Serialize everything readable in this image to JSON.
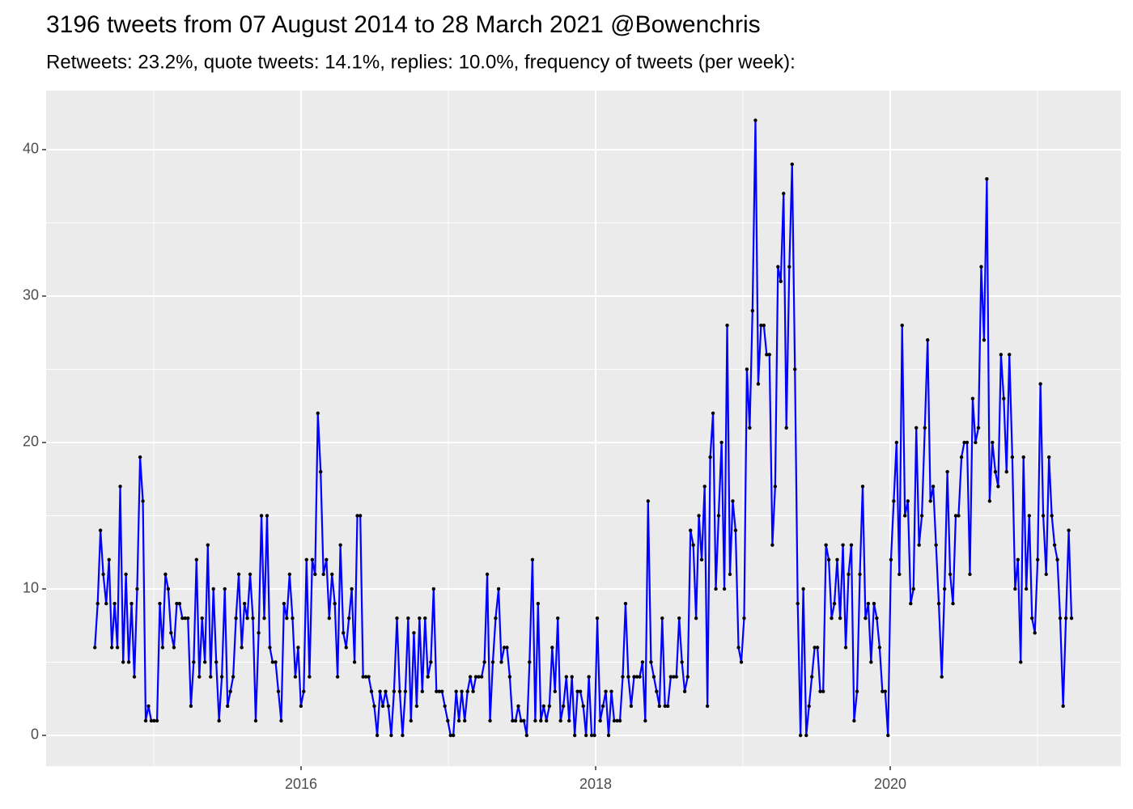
{
  "chart_data": {
    "type": "line",
    "title": "3196 tweets from 07 August 2014 to 28 March 2021 @Bowenchris",
    "subtitle": "Retweets: 23.2%, quote tweets: 14.1%, replies: 10.0%, frequency of tweets (per week):",
    "color": "#0000ff",
    "point_color": "#000000",
    "grid": true,
    "xlim": [
      2014.269,
      2021.566
    ],
    "xticks": [
      2016,
      2018,
      2020
    ],
    "minor_xticks": [
      2015,
      2017,
      2019,
      2021
    ],
    "ylim": [
      -2.1,
      44.03
    ],
    "yticks": [
      0,
      10,
      20,
      30,
      40
    ],
    "minor_yticks": [
      5,
      15,
      25,
      35
    ],
    "x": [
      2014.6,
      2014.619,
      2014.638,
      2014.657,
      2014.677,
      2014.696,
      2014.715,
      2014.734,
      2014.753,
      2014.772,
      2014.792,
      2014.811,
      2014.83,
      2014.849,
      2014.868,
      2014.887,
      2014.907,
      2014.926,
      2014.945,
      2014.964,
      2014.983,
      2015.002,
      2015.022,
      2015.041,
      2015.06,
      2015.079,
      2015.098,
      2015.117,
      2015.137,
      2015.156,
      2015.175,
      2015.194,
      2015.213,
      2015.232,
      2015.252,
      2015.271,
      2015.29,
      2015.309,
      2015.328,
      2015.347,
      2015.367,
      2015.386,
      2015.405,
      2015.424,
      2015.443,
      2015.462,
      2015.482,
      2015.501,
      2015.52,
      2015.539,
      2015.558,
      2015.577,
      2015.597,
      2015.616,
      2015.635,
      2015.654,
      2015.673,
      2015.692,
      2015.712,
      2015.731,
      2015.75,
      2015.769,
      2015.788,
      2015.807,
      2015.827,
      2015.846,
      2015.865,
      2015.884,
      2015.903,
      2015.922,
      2015.942,
      2015.961,
      2015.98,
      2015.999,
      2016.018,
      2016.037,
      2016.057,
      2016.076,
      2016.095,
      2016.114,
      2016.133,
      2016.152,
      2016.172,
      2016.191,
      2016.21,
      2016.229,
      2016.248,
      2016.267,
      2016.287,
      2016.306,
      2016.325,
      2016.344,
      2016.363,
      2016.382,
      2016.402,
      2016.421,
      2016.44,
      2016.459,
      2016.478,
      2016.497,
      2016.517,
      2016.536,
      2016.555,
      2016.574,
      2016.593,
      2016.612,
      2016.631,
      2016.651,
      2016.67,
      2016.689,
      2016.708,
      2016.727,
      2016.746,
      2016.766,
      2016.785,
      2016.804,
      2016.823,
      2016.842,
      2016.861,
      2016.881,
      2016.9,
      2016.919,
      2016.938,
      2016.957,
      2016.976,
      2016.996,
      2017.015,
      2017.034,
      2017.053,
      2017.072,
      2017.091,
      2017.111,
      2017.13,
      2017.149,
      2017.168,
      2017.187,
      2017.206,
      2017.226,
      2017.245,
      2017.264,
      2017.283,
      2017.302,
      2017.321,
      2017.341,
      2017.36,
      2017.379,
      2017.398,
      2017.417,
      2017.436,
      2017.456,
      2017.475,
      2017.494,
      2017.513,
      2017.532,
      2017.551,
      2017.571,
      2017.59,
      2017.609,
      2017.628,
      2017.647,
      2017.666,
      2017.686,
      2017.705,
      2017.724,
      2017.743,
      2017.762,
      2017.781,
      2017.801,
      2017.82,
      2017.839,
      2017.858,
      2017.877,
      2017.896,
      2017.916,
      2017.935,
      2017.954,
      2017.973,
      2017.992,
      2018.011,
      2018.031,
      2018.05,
      2018.069,
      2018.088,
      2018.107,
      2018.126,
      2018.146,
      2018.165,
      2018.184,
      2018.203,
      2018.222,
      2018.241,
      2018.261,
      2018.28,
      2018.299,
      2018.318,
      2018.337,
      2018.356,
      2018.376,
      2018.395,
      2018.414,
      2018.433,
      2018.452,
      2018.471,
      2018.49,
      2018.51,
      2018.529,
      2018.548,
      2018.567,
      2018.586,
      2018.605,
      2018.625,
      2018.644,
      2018.663,
      2018.682,
      2018.701,
      2018.72,
      2018.74,
      2018.759,
      2018.778,
      2018.797,
      2018.816,
      2018.835,
      2018.855,
      2018.874,
      2018.893,
      2018.912,
      2018.931,
      2018.95,
      2018.97,
      2018.989,
      2019.008,
      2019.027,
      2019.046,
      2019.065,
      2019.085,
      2019.104,
      2019.123,
      2019.142,
      2019.161,
      2019.18,
      2019.2,
      2019.219,
      2019.238,
      2019.257,
      2019.276,
      2019.295,
      2019.315,
      2019.334,
      2019.353,
      2019.372,
      2019.391,
      2019.41,
      2019.43,
      2019.449,
      2019.468,
      2019.487,
      2019.506,
      2019.525,
      2019.545,
      2019.564,
      2019.583,
      2019.602,
      2019.621,
      2019.64,
      2019.66,
      2019.679,
      2019.698,
      2019.717,
      2019.736,
      2019.755,
      2019.775,
      2019.794,
      2019.813,
      2019.832,
      2019.851,
      2019.87,
      2019.89,
      2019.909,
      2019.928,
      2019.947,
      2019.966,
      2019.985,
      2020.005,
      2020.024,
      2020.043,
      2020.062,
      2020.081,
      2020.1,
      2020.12,
      2020.139,
      2020.158,
      2020.177,
      2020.196,
      2020.215,
      2020.235,
      2020.254,
      2020.273,
      2020.292,
      2020.311,
      2020.33,
      2020.35,
      2020.369,
      2020.388,
      2020.407,
      2020.426,
      2020.445,
      2020.464,
      2020.484,
      2020.503,
      2020.522,
      2020.541,
      2020.56,
      2020.579,
      2020.599,
      2020.618,
      2020.637,
      2020.656,
      2020.675,
      2020.694,
      2020.714,
      2020.733,
      2020.752,
      2020.771,
      2020.79,
      2020.809,
      2020.829,
      2020.848,
      2020.867,
      2020.886,
      2020.905,
      2020.924,
      2020.944,
      2020.963,
      2020.982,
      2021.001,
      2021.02,
      2021.039,
      2021.059,
      2021.078,
      2021.097,
      2021.116,
      2021.135,
      2021.154,
      2021.174,
      2021.193,
      2021.212,
      2021.231
    ],
    "values": [
      6,
      9,
      14,
      11,
      9,
      12,
      6,
      9,
      6,
      17,
      5,
      11,
      5,
      9,
      4,
      10,
      19,
      16,
      1,
      2,
      1,
      1,
      1,
      9,
      6,
      11,
      10,
      7,
      6,
      9,
      9,
      8,
      8,
      8,
      2,
      5,
      12,
      4,
      8,
      5,
      13,
      4,
      10,
      5,
      1,
      4,
      10,
      2,
      3,
      4,
      8,
      11,
      6,
      9,
      8,
      11,
      8,
      1,
      7,
      15,
      8,
      15,
      6,
      5,
      5,
      3,
      1,
      9,
      8,
      11,
      8,
      4,
      6,
      2,
      3,
      12,
      4,
      12,
      11,
      22,
      18,
      11,
      12,
      8,
      11,
      9,
      4,
      13,
      7,
      6,
      8,
      10,
      5,
      15,
      15,
      4,
      4,
      4,
      3,
      2,
      0,
      3,
      2,
      3,
      2,
      0,
      3,
      8,
      3,
      0,
      3,
      8,
      1,
      7,
      2,
      8,
      3,
      8,
      4,
      5,
      10,
      3,
      3,
      3,
      2,
      1,
      0,
      0,
      3,
      1,
      3,
      1,
      3,
      4,
      3,
      4,
      4,
      4,
      5,
      11,
      1,
      5,
      8,
      10,
      5,
      6,
      6,
      4,
      1,
      1,
      2,
      1,
      1,
      0,
      5,
      12,
      1,
      9,
      1,
      2,
      1,
      2,
      6,
      3,
      8,
      1,
      2,
      4,
      1,
      4,
      0,
      3,
      3,
      2,
      0,
      4,
      0,
      0,
      8,
      1,
      2,
      3,
      0,
      3,
      1,
      1,
      1,
      4,
      9,
      4,
      2,
      4,
      4,
      4,
      5,
      1,
      16,
      5,
      4,
      3,
      2,
      8,
      2,
      2,
      4,
      4,
      4,
      8,
      5,
      3,
      4,
      14,
      13,
      8,
      15,
      12,
      17,
      2,
      19,
      22,
      10,
      15,
      20,
      10,
      28,
      11,
      16,
      14,
      6,
      5,
      8,
      25,
      21,
      29,
      42,
      24,
      28,
      28,
      26,
      26,
      13,
      17,
      32,
      31,
      37,
      21,
      32,
      39,
      25,
      9,
      0,
      10,
      0,
      2,
      4,
      6,
      6,
      3,
      3,
      13,
      12,
      8,
      9,
      12,
      8,
      13,
      6,
      11,
      13,
      1,
      3,
      11,
      17,
      8,
      9,
      5,
      9,
      8,
      6,
      3,
      3,
      0,
      12,
      16,
      20,
      11,
      28,
      15,
      16,
      9,
      10,
      21,
      13,
      15,
      21,
      27,
      16,
      17,
      13,
      9,
      4,
      10,
      18,
      11,
      9,
      15,
      15,
      19,
      20,
      20,
      11,
      23,
      20,
      21,
      32,
      27,
      38,
      16,
      20,
      18,
      17,
      26,
      23,
      18,
      26,
      19,
      10,
      12,
      5,
      19,
      10,
      15,
      8,
      7,
      12,
      24,
      15,
      11,
      19,
      15,
      13,
      12,
      8,
      2,
      8,
      14,
      8
    ]
  }
}
